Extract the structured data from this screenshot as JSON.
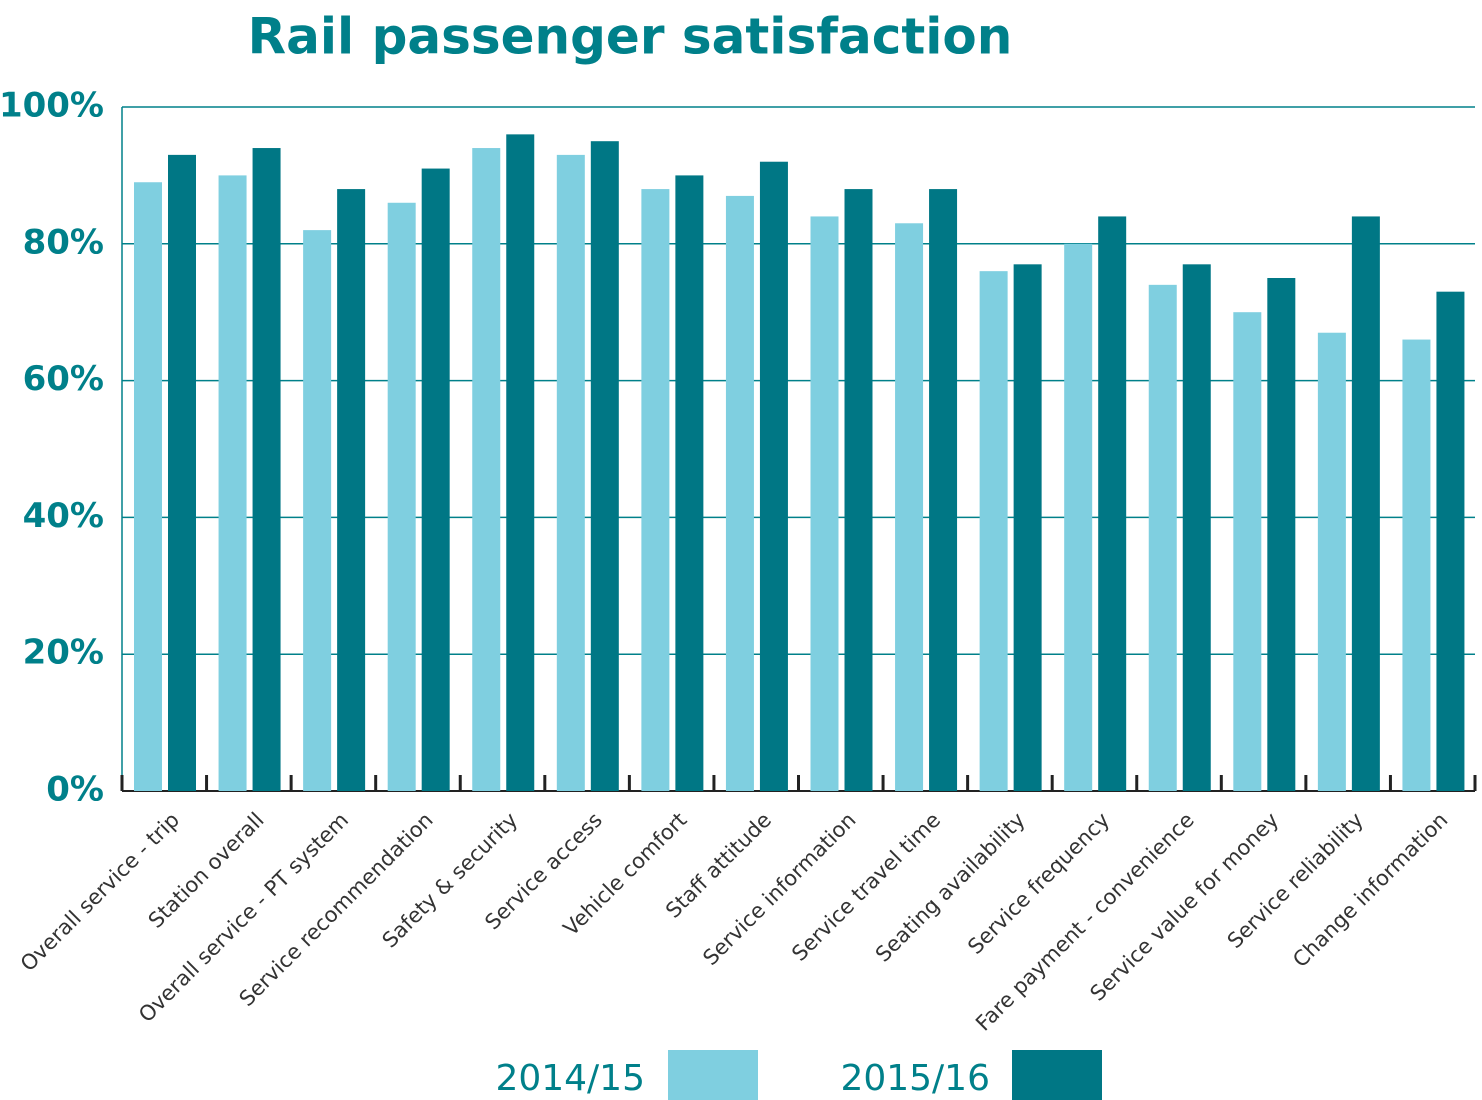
{
  "chart_data": {
    "type": "bar",
    "title": "Rail passenger satisfaction",
    "categories": [
      "Overall service - trip",
      "Station overall",
      "Overall service - PT system",
      "Service recommendation",
      "Safety & security",
      "Service access",
      "Vehicle comfort",
      "Staff attitude",
      "Service information",
      "Service travel time",
      "Seating availability",
      "Service frequency",
      "Fare payment - convenience",
      "Service value for money",
      "Service reliability",
      "Change information"
    ],
    "series": [
      {
        "name": "2014/15",
        "color": "#7fcfe0",
        "values": [
          89,
          90,
          82,
          86,
          94,
          93,
          88,
          87,
          84,
          83,
          76,
          80,
          74,
          70,
          67,
          66
        ]
      },
      {
        "name": "2015/16",
        "color": "#007785",
        "values": [
          93,
          94,
          88,
          91,
          96,
          95,
          90,
          92,
          88,
          88,
          77,
          84,
          77,
          75,
          84,
          73
        ]
      }
    ],
    "ylim": [
      0,
      100
    ],
    "yticks": [
      {
        "value": 0,
        "label": "0%"
      },
      {
        "value": 20,
        "label": "20%"
      },
      {
        "value": 40,
        "label": "40%"
      },
      {
        "value": 60,
        "label": "60%"
      },
      {
        "value": 80,
        "label": "80%"
      },
      {
        "value": 100,
        "label": "100%"
      }
    ],
    "grid": true,
    "legend": "bottom"
  }
}
